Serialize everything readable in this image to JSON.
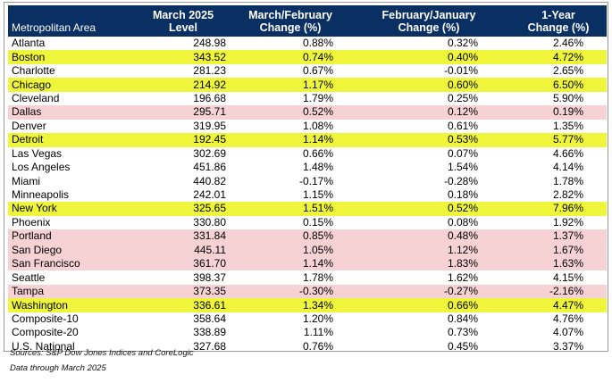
{
  "table": {
    "headers": {
      "area": "Metropolitan Area",
      "level": [
        "March 2025",
        "Level"
      ],
      "mar_feb": [
        "March/February",
        "Change (%)"
      ],
      "feb_jan": [
        "February/January",
        "Change (%)"
      ],
      "one_year": [
        "1-Year",
        "Change (%)"
      ]
    },
    "highlight_colors": {
      "yellow": "#eef53a",
      "pink": "#f7d2d4"
    },
    "header_color": "#0a2f63",
    "rows": [
      {
        "area": "Atlanta",
        "level": "248.98",
        "mar_feb": "0.88%",
        "feb_jan": "0.32%",
        "one_year": "2.46%",
        "highlight": "none"
      },
      {
        "area": "Boston",
        "level": "343.52",
        "mar_feb": "0.74%",
        "feb_jan": "0.40%",
        "one_year": "4.72%",
        "highlight": "yellow"
      },
      {
        "area": "Charlotte",
        "level": "281.23",
        "mar_feb": "0.67%",
        "feb_jan": "-0.01%",
        "one_year": "2.65%",
        "highlight": "none"
      },
      {
        "area": "Chicago",
        "level": "214.92",
        "mar_feb": "1.17%",
        "feb_jan": "0.60%",
        "one_year": "6.50%",
        "highlight": "yellow"
      },
      {
        "area": "Cleveland",
        "level": "196.68",
        "mar_feb": "1.79%",
        "feb_jan": "0.25%",
        "one_year": "5.90%",
        "highlight": "none"
      },
      {
        "area": "Dallas",
        "level": "295.71",
        "mar_feb": "0.52%",
        "feb_jan": "0.12%",
        "one_year": "0.19%",
        "highlight": "pink"
      },
      {
        "area": "Denver",
        "level": "319.95",
        "mar_feb": "1.08%",
        "feb_jan": "0.61%",
        "one_year": "1.35%",
        "highlight": "none"
      },
      {
        "area": "Detroit",
        "level": "192.45",
        "mar_feb": "1.14%",
        "feb_jan": "0.53%",
        "one_year": "5.77%",
        "highlight": "yellow"
      },
      {
        "area": "Las Vegas",
        "level": "302.69",
        "mar_feb": "0.66%",
        "feb_jan": "0.07%",
        "one_year": "4.66%",
        "highlight": "none"
      },
      {
        "area": "Los Angeles",
        "level": "451.86",
        "mar_feb": "1.48%",
        "feb_jan": "1.54%",
        "one_year": "4.14%",
        "highlight": "none"
      },
      {
        "area": "Miami",
        "level": "440.82",
        "mar_feb": "-0.17%",
        "feb_jan": "-0.28%",
        "one_year": "1.78%",
        "highlight": "none"
      },
      {
        "area": "Minneapolis",
        "level": "242.01",
        "mar_feb": "1.15%",
        "feb_jan": "0.18%",
        "one_year": "2.82%",
        "highlight": "none"
      },
      {
        "area": "New York",
        "level": "325.65",
        "mar_feb": "1.51%",
        "feb_jan": "0.52%",
        "one_year": "7.96%",
        "highlight": "yellow"
      },
      {
        "area": "Phoenix",
        "level": "330.80",
        "mar_feb": "0.15%",
        "feb_jan": "0.08%",
        "one_year": "1.92%",
        "highlight": "none"
      },
      {
        "area": "Portland",
        "level": "331.84",
        "mar_feb": "0.85%",
        "feb_jan": "0.48%",
        "one_year": "1.37%",
        "highlight": "pink"
      },
      {
        "area": "San Diego",
        "level": "445.11",
        "mar_feb": "1.05%",
        "feb_jan": "1.12%",
        "one_year": "1.67%",
        "highlight": "pink"
      },
      {
        "area": "San Francisco",
        "level": "361.70",
        "mar_feb": "1.14%",
        "feb_jan": "1.83%",
        "one_year": "1.63%",
        "highlight": "pink"
      },
      {
        "area": "Seattle",
        "level": "398.37",
        "mar_feb": "1.78%",
        "feb_jan": "1.62%",
        "one_year": "4.15%",
        "highlight": "none"
      },
      {
        "area": "Tampa",
        "level": "373.35",
        "mar_feb": "-0.30%",
        "feb_jan": "-0.27%",
        "one_year": "-2.16%",
        "highlight": "pink"
      },
      {
        "area": "Washington",
        "level": "336.61",
        "mar_feb": "1.34%",
        "feb_jan": "0.66%",
        "one_year": "4.47%",
        "highlight": "yellow"
      },
      {
        "area": "Composite-10",
        "level": "358.64",
        "mar_feb": "1.20%",
        "feb_jan": "0.84%",
        "one_year": "4.76%",
        "highlight": "none"
      },
      {
        "area": "Composite-20",
        "level": "338.89",
        "mar_feb": "1.11%",
        "feb_jan": "0.73%",
        "one_year": "4.07%",
        "highlight": "none"
      },
      {
        "area": "U.S. National",
        "level": "327.68",
        "mar_feb": "0.76%",
        "feb_jan": "0.45%",
        "one_year": "3.37%",
        "highlight": "none"
      }
    ]
  },
  "footnotes": {
    "sources": "Sources: S&P Dow Jones Indices and CoreLogic",
    "data_through": "Data through March 2025"
  }
}
